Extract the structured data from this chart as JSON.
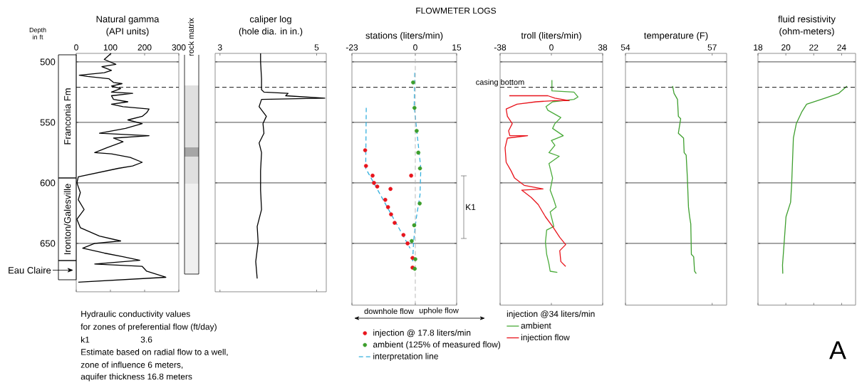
{
  "chart_data": [
    {
      "type": "line",
      "title": "Natural gamma",
      "subtitle": "(API units)",
      "ylabel": "Depth in ft",
      "xlim": [
        0,
        300
      ],
      "xticks": [
        0,
        100,
        200,
        300
      ],
      "ylim": [
        690,
        493
      ],
      "yticks": [
        500,
        550,
        600,
        650
      ],
      "grid": "y",
      "series": [
        {
          "color": "#000000",
          "x": [
            102,
            82,
            116,
            75,
            103,
            82,
            9,
            33,
            96,
            109,
            134,
            103,
            130,
            103,
            165,
            103,
            109,
            151,
            103,
            137,
            213,
            206,
            193,
            151,
            193,
            144,
            68,
            213,
            109,
            137,
            89,
            54,
            103,
            158,
            193,
            165,
            123,
            6,
            2,
            12,
            6,
            23,
            2,
            12,
            68,
            130,
            54,
            19,
            82,
            137,
            186,
            54,
            193,
            206,
            262,
            6
          ],
          "values": [
            493,
            498,
            502,
            504,
            507,
            509,
            511,
            512,
            514,
            517,
            518,
            520,
            522,
            525,
            526,
            528,
            531,
            533,
            535,
            537,
            539,
            542,
            545,
            548,
            551,
            555,
            559,
            561,
            563,
            566,
            571,
            575,
            576,
            579,
            583,
            586,
            588,
            595,
            600,
            608,
            614,
            622,
            630,
            637,
            644,
            648,
            650,
            654,
            658,
            661,
            664,
            667,
            669,
            673,
            678,
            682
          ]
        }
      ],
      "ref_lines": [
        {
          "axis": "y",
          "value": 521,
          "color": "#000000",
          "line_style": "dashed"
        }
      ],
      "annotations": [
        "rock matrix",
        "Hydraulic conductivity values",
        "for zones of preferential flow (ft/day)",
        "k1",
        "3.6",
        "Estimate based on radial flow to a well,",
        "zone of influence 6 meters,",
        "aquifer thickness 16.8 meters",
        "Franconia Fm",
        "Ironton/Galesville",
        "Eau Claire"
      ]
    },
    {
      "type": "line",
      "title": "caliper log",
      "subtitle": "(hole dia. in in.)",
      "xlim": [
        2.9,
        5.2
      ],
      "xticks": [
        3,
        5
      ],
      "ylim": [
        690,
        493
      ],
      "yticks": [
        500,
        550,
        600,
        650
      ],
      "grid": "y",
      "tick_labels": "x",
      "series": [
        {
          "color": "#000000",
          "x": [
            3.84,
            3.84,
            3.86,
            3.86,
            3.91,
            4.41,
            4.36,
            5.17,
            3.86,
            3.81,
            3.96,
            3.89,
            3.91,
            3.81,
            3.86,
            3.84,
            3.84,
            3.86,
            3.77,
            3.79,
            3.74,
            3.77
          ],
          "values": [
            493,
            500,
            514,
            523,
            525,
            526,
            528,
            530,
            531,
            537,
            545,
            551,
            559,
            567,
            575,
            590,
            606,
            622,
            636,
            649,
            665,
            679
          ]
        }
      ],
      "ref_lines": [
        {
          "axis": "y",
          "value": 521,
          "color": "#000000",
          "line_style": "dashed"
        }
      ]
    },
    {
      "type": "scatter",
      "title": "stations (liters/min)",
      "xlim": [
        -23,
        15
      ],
      "xticks": [
        -23,
        0,
        15
      ],
      "ylim": [
        701,
        493
      ],
      "yticks": [
        500,
        550,
        600,
        650
      ],
      "grid": "y",
      "tick_labels": "x",
      "marker": "circle",
      "legend": "bottom",
      "series": [
        {
          "name": "injection @ 17.8 liters/min",
          "color": "#e8141c",
          "x": [
            -18.2,
            -17.9,
            -15.5,
            -15,
            -13.8,
            -9,
            -1.5,
            -10.9,
            -9.9,
            -8.8,
            -7.5,
            -4.3,
            -2.8,
            -1,
            -1
          ],
          "values": [
            573,
            586,
            594,
            600,
            603,
            605,
            594,
            614,
            620,
            626,
            633,
            643,
            650,
            662,
            670
          ]
        },
        {
          "name": "ambient (125% of measured flow)",
          "color": "#3c9e2c",
          "x": [
            -0.8,
            -0.3,
            0.5,
            1.1,
            1.7,
            1.6,
            -0.4,
            -1.3,
            0,
            -0.2
          ],
          "values": [
            517,
            538,
            557,
            575,
            588,
            617,
            635,
            648,
            663,
            671
          ]
        },
        {
          "name": "interpretation line",
          "type": "line",
          "marker": "none",
          "line_style": "dashed",
          "color": "#35b0de",
          "x": [
            -17.8,
            -18,
            -1.9
          ],
          "values": [
            538,
            588,
            654
          ]
        },
        {
          "type": "line",
          "marker": "none",
          "line_style": "dashed",
          "color": "#35b0de",
          "x": [
            -0.2,
            -0.4,
            2,
            1.7,
            0.3,
            -0.6,
            -1
          ],
          "values": [
            509,
            537,
            588,
            610,
            630,
            648,
            666
          ]
        }
      ],
      "ref_lines": [
        {
          "axis": "y",
          "value": 521,
          "color": "#000000",
          "line_style": "dashed"
        },
        {
          "axis": "x",
          "value": 0,
          "color": "#b0b0b0",
          "line_style": "dashed"
        }
      ],
      "annotations": [
        "FLOWMETER LOGS",
        "downhole flow",
        "uphole flow",
        "K1"
      ]
    },
    {
      "type": "line",
      "title": "troll (liters/min)",
      "xlim": [
        -38,
        38
      ],
      "xticks": [
        -38,
        0,
        38
      ],
      "ylim": [
        701,
        493
      ],
      "yticks": [
        500,
        550,
        600,
        650
      ],
      "grid": "y",
      "tick_labels": "x",
      "legend": "bottom",
      "legend_title": "injection @34 liters/min",
      "series": [
        {
          "name": "ambient",
          "color": "#4aab3a",
          "x": [
            0.4,
            0.4,
            16.7,
            19.7,
            16.7,
            0.9,
            -4,
            -2.6,
            7,
            2.6,
            0.9,
            8.8,
            0,
            2.6,
            -1.8,
            5.8,
            -1.8,
            0.9,
            -0.9,
            1.8,
            3.5,
            -0.9,
            1.8,
            -3.5,
            -4.4,
            -3.5,
            -1.8,
            -0.9,
            4.4
          ],
          "values": [
            515,
            524,
            525,
            529,
            531,
            533,
            537,
            540,
            546,
            551,
            555,
            561,
            565,
            569,
            575,
            578,
            584,
            596,
            606,
            614,
            620,
            624,
            636,
            639,
            649,
            659,
            667,
            673,
            674
          ]
        },
        {
          "name": "injection flow",
          "color": "#e8141c",
          "x": [
            -31.2,
            -2.6,
            2.6,
            13.2,
            2.6,
            -11.4,
            -25.5,
            -33.5,
            -32.6,
            -29,
            -31.7,
            -30.8,
            -17.6,
            -32.6,
            -34.3,
            -33.5,
            -29.9,
            -27.3,
            -20.2,
            -6.2,
            -22,
            -15,
            -9.7,
            -4.4,
            0.9,
            6.2,
            10.6,
            6.2,
            7,
            10.6
          ],
          "values": [
            528,
            528,
            530,
            532,
            532,
            533,
            535,
            539,
            545,
            551,
            557,
            561,
            561,
            563,
            571,
            583,
            590,
            596,
            602,
            605,
            606,
            612,
            618,
            628,
            636,
            645,
            651,
            656,
            665,
            669
          ]
        }
      ],
      "ref_lines": [
        {
          "axis": "y",
          "value": 521,
          "color": "#000000",
          "line_style": "dashed",
          "label": "casing bottom"
        }
      ]
    },
    {
      "type": "line",
      "title": "temperature (F)",
      "xlim": [
        54,
        57.5
      ],
      "xticks": [
        54,
        57
      ],
      "ylim": [
        701,
        493
      ],
      "yticks": [
        500,
        550,
        600,
        650
      ],
      "grid": "y",
      "tick_labels": "x",
      "series": [
        {
          "color": "#3f9f2f",
          "x": [
            55.63,
            55.68,
            55.8,
            55.83,
            55.91,
            55.83,
            56.01,
            56.03,
            56.1,
            56.14,
            56.18,
            56.22,
            56.26,
            56.28,
            56.36,
            56.39,
            56.45
          ],
          "values": [
            520,
            526,
            531,
            545,
            547,
            559,
            563,
            575,
            577,
            595,
            620,
            628,
            634,
            659,
            661,
            673,
            675
          ]
        }
      ],
      "ref_lines": [
        {
          "axis": "y",
          "value": 521,
          "color": "#000000",
          "line_style": "dashed"
        }
      ]
    },
    {
      "type": "line",
      "title": "fluid resistivity",
      "subtitle": "(ohm-meters)",
      "xlim": [
        18,
        25
      ],
      "xticks": [
        18,
        20,
        22,
        24
      ],
      "ylim": [
        701,
        493
      ],
      "yticks": [
        500,
        550,
        600,
        650
      ],
      "grid": "y",
      "tick_labels": "x",
      "series": [
        {
          "color": "#3f9f2f",
          "x": [
            24.38,
            23.8,
            22.81,
            21.49,
            21.16,
            20.75,
            20.54,
            20.42,
            20.34,
            20.01,
            19.88,
            19.76,
            19.78
          ],
          "values": [
            520,
            526,
            530,
            535,
            541,
            551,
            563,
            600,
            616,
            628,
            649,
            668,
            675
          ]
        }
      ],
      "ref_lines": [
        {
          "axis": "y",
          "value": 521,
          "color": "#000000",
          "line_style": "dashed"
        }
      ],
      "annotations": [
        "A"
      ]
    }
  ]
}
